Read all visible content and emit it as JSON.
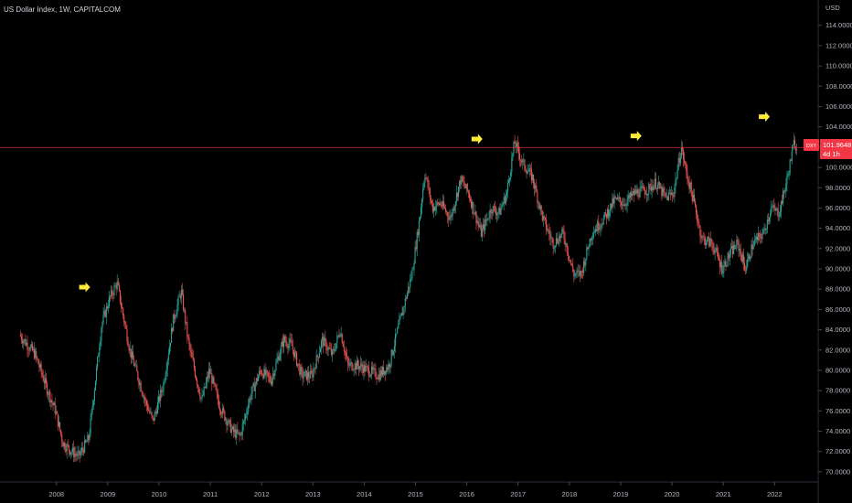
{
  "chart_data": {
    "type": "candlestick",
    "title": "US Dollar Index, 1W, CAPITALCOM",
    "currency": "USD",
    "ylim": [
      69.0,
      116.5
    ],
    "xlim": [
      2006.9,
      2022.85
    ],
    "y_ticks": [
      "114.0000",
      "112.0000",
      "110.0000",
      "108.0000",
      "106.0000",
      "104.0000",
      "102.0000",
      "100.0000",
      "98.0000",
      "96.0000",
      "94.0000",
      "92.0000",
      "90.0000",
      "88.0000",
      "86.0000",
      "84.0000",
      "82.0000",
      "80.0000",
      "78.0000",
      "76.0000",
      "74.0000",
      "72.0000",
      "70.0000"
    ],
    "x_ticks": [
      "2008",
      "2009",
      "2010",
      "2011",
      "2012",
      "2013",
      "2014",
      "2015",
      "2016",
      "2017",
      "2018",
      "2019",
      "2020",
      "2021",
      "2022"
    ],
    "price_line": {
      "value": 101.9648,
      "color": "#f23645"
    },
    "price_label": {
      "symbol": "DXY",
      "price": "101.9648",
      "countdown": "4d 1h",
      "color": "#f23645"
    },
    "series": [
      {
        "name": "DXY",
        "waypoints": [
          [
            2007.3,
            83.5
          ],
          [
            2007.6,
            81.6
          ],
          [
            2007.85,
            78.0
          ],
          [
            2008.0,
            76.0
          ],
          [
            2008.15,
            72.8
          ],
          [
            2008.28,
            72.2
          ],
          [
            2008.45,
            71.5
          ],
          [
            2008.65,
            73.3
          ],
          [
            2008.9,
            84.5
          ],
          [
            2009.05,
            87.0
          ],
          [
            2009.2,
            88.6
          ],
          [
            2009.45,
            82.0
          ],
          [
            2009.75,
            77.0
          ],
          [
            2009.9,
            75.0
          ],
          [
            2010.1,
            78.5
          ],
          [
            2010.3,
            85.0
          ],
          [
            2010.45,
            87.8
          ],
          [
            2010.6,
            82.5
          ],
          [
            2010.85,
            77.0
          ],
          [
            2011.0,
            80.0
          ],
          [
            2011.2,
            76.5
          ],
          [
            2011.45,
            74.0
          ],
          [
            2011.6,
            73.5
          ],
          [
            2011.8,
            77.5
          ],
          [
            2012.0,
            80.0
          ],
          [
            2012.2,
            79.0
          ],
          [
            2012.45,
            83.0
          ],
          [
            2012.6,
            82.5
          ],
          [
            2012.8,
            79.5
          ],
          [
            2013.0,
            79.5
          ],
          [
            2013.2,
            83.0
          ],
          [
            2013.4,
            81.5
          ],
          [
            2013.55,
            84.0
          ],
          [
            2013.7,
            80.5
          ],
          [
            2013.9,
            80.5
          ],
          [
            2014.1,
            80.0
          ],
          [
            2014.3,
            79.5
          ],
          [
            2014.5,
            80.5
          ],
          [
            2014.75,
            85.5
          ],
          [
            2014.95,
            89.5
          ],
          [
            2015.1,
            95.0
          ],
          [
            2015.2,
            99.5
          ],
          [
            2015.35,
            96.0
          ],
          [
            2015.5,
            96.5
          ],
          [
            2015.7,
            95.0
          ],
          [
            2015.9,
            98.8
          ],
          [
            2016.05,
            97.5
          ],
          [
            2016.3,
            93.5
          ],
          [
            2016.5,
            96.0
          ],
          [
            2016.65,
            95.5
          ],
          [
            2016.8,
            97.5
          ],
          [
            2016.95,
            102.5
          ],
          [
            2017.1,
            100.5
          ],
          [
            2017.3,
            99.0
          ],
          [
            2017.5,
            95.0
          ],
          [
            2017.7,
            92.5
          ],
          [
            2017.9,
            93.5
          ],
          [
            2018.1,
            89.5
          ],
          [
            2018.25,
            89.5
          ],
          [
            2018.45,
            93.5
          ],
          [
            2018.7,
            95.0
          ],
          [
            2018.9,
            96.8
          ],
          [
            2019.1,
            96.5
          ],
          [
            2019.3,
            97.5
          ],
          [
            2019.55,
            97.8
          ],
          [
            2019.7,
            98.5
          ],
          [
            2019.9,
            97.0
          ],
          [
            2020.05,
            97.5
          ],
          [
            2020.2,
            102.0
          ],
          [
            2020.3,
            99.5
          ],
          [
            2020.45,
            96.5
          ],
          [
            2020.6,
            93.0
          ],
          [
            2020.8,
            92.5
          ],
          [
            2021.0,
            90.0
          ],
          [
            2021.15,
            91.5
          ],
          [
            2021.3,
            92.5
          ],
          [
            2021.45,
            90.0
          ],
          [
            2021.6,
            92.5
          ],
          [
            2021.8,
            93.5
          ],
          [
            2021.95,
            96.0
          ],
          [
            2022.1,
            95.5
          ],
          [
            2022.25,
            98.5
          ],
          [
            2022.4,
            102.5
          ],
          [
            2022.45,
            102.0
          ]
        ]
      }
    ],
    "annotations": [
      {
        "type": "arrow",
        "direction": "right",
        "color": "#ffeb3b",
        "x": 2008.55,
        "y": 88.2
      },
      {
        "type": "arrow",
        "direction": "right",
        "color": "#ffeb3b",
        "x": 2016.2,
        "y": 102.8
      },
      {
        "type": "arrow",
        "direction": "right",
        "color": "#ffeb3b",
        "x": 2019.3,
        "y": 103.1
      },
      {
        "type": "arrow",
        "direction": "right",
        "color": "#ffeb3b",
        "x": 2021.8,
        "y": 105.0
      }
    ],
    "colors": {
      "up": "#26a69a",
      "down": "#ef5350",
      "background": "#000000",
      "text": "#b2b5be"
    },
    "grid": false
  }
}
